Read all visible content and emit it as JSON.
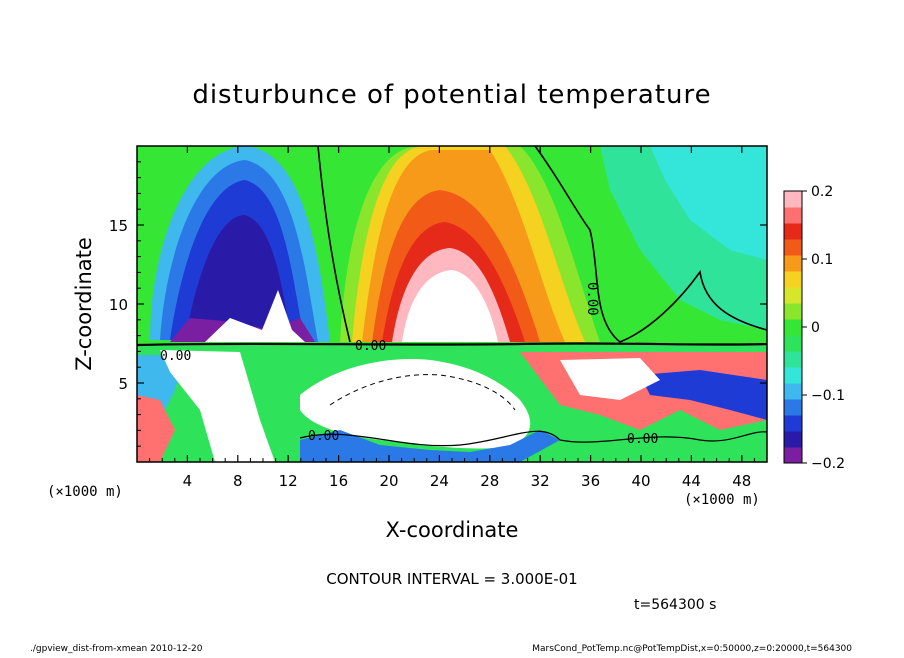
{
  "chart_data": {
    "type": "heatmap",
    "title": "disturbunce of potential temperature",
    "xlabel": "X-coordinate",
    "ylabel": "Z-coordinate",
    "x_unit": "(×1000 m)",
    "z_unit": "(×1000 m)",
    "xlim": [
      0,
      50
    ],
    "ylim": [
      0,
      20
    ],
    "x_ticks": [
      4,
      8,
      12,
      16,
      20,
      24,
      28,
      32,
      36,
      40,
      44,
      48
    ],
    "y_ticks": [
      5,
      10,
      15
    ],
    "colorbar": {
      "min": -0.2,
      "max": 0.2,
      "ticks": [
        0.2,
        0.1,
        0,
        -0.1,
        -0.2
      ],
      "tick_labels": [
        "0.2",
        "0.1",
        "0",
        "−0.1",
        "−0.2"
      ],
      "colors": [
        "#7b1fa2",
        "#2a1aa8",
        "#1f3bd6",
        "#2b79e6",
        "#3fb8ee",
        "#33e6d9",
        "#2fe39a",
        "#2ee35a",
        "#35e635",
        "#8ae62c",
        "#d6e62a",
        "#f5d21f",
        "#f79a1a",
        "#f25a18",
        "#e62a1a",
        "#ff7070",
        "#ffb8c0"
      ]
    },
    "contour_label": "0.00",
    "contour_interval_text": "CONTOUR INTERVAL = 3.000E-01",
    "time_text": "t=564300 s"
  },
  "footer": {
    "left": "./gpview_dist-from-xmean  2010-12-20",
    "right": "MarsCond_PotTemp.nc@PotTempDist,x=0:50000,z=0:20000,t=564300"
  }
}
